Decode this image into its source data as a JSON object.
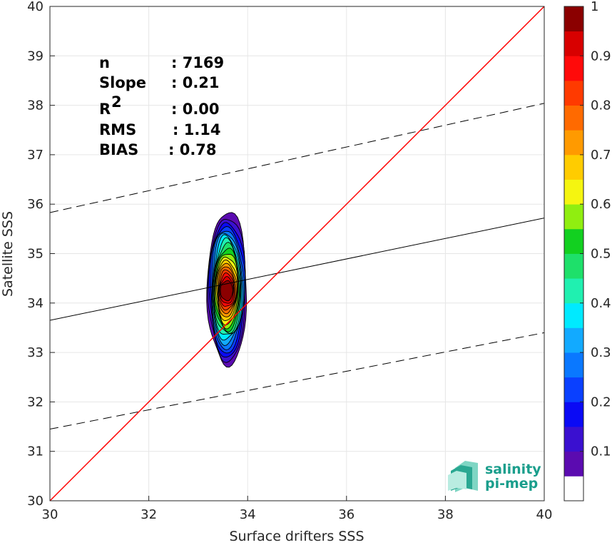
{
  "chart_data": {
    "type": "contour",
    "xlabel": "Surface drifters SSS",
    "ylabel": "Satellite SSS",
    "xlim": [
      30,
      40
    ],
    "ylim": [
      30,
      40
    ],
    "xticks": [
      "30",
      "32",
      "34",
      "36",
      "38",
      "40"
    ],
    "yticks": [
      "30",
      "31",
      "32",
      "33",
      "34",
      "35",
      "36",
      "37",
      "38",
      "39",
      "40"
    ],
    "grid": true,
    "stats": [
      {
        "label": "n",
        "value": ": 7169"
      },
      {
        "label": "Slope",
        "value": ": 0.21"
      },
      {
        "label": "R",
        "sup": "2",
        "value": ": 0.00"
      },
      {
        "label": "RMS",
        "value": ": 1.14"
      },
      {
        "label": "BIAS",
        "value": ": 0.78"
      }
    ],
    "identity_line": {
      "x": [
        30,
        40
      ],
      "y": [
        30,
        40
      ],
      "color": "#ff0000"
    },
    "regression_line": {
      "x": [
        30,
        40
      ],
      "y": [
        33.65,
        35.72
      ],
      "color": "#000000"
    },
    "upper_band": {
      "x": [
        30,
        40
      ],
      "y": [
        35.83,
        38.04
      ],
      "style": "dashed"
    },
    "lower_band": {
      "x": [
        30,
        40
      ],
      "y": [
        31.45,
        33.4
      ],
      "style": "dashed"
    },
    "density_contours": {
      "center": [
        33.57,
        34.25
      ],
      "levels": [
        0.05,
        0.1,
        0.15,
        0.2,
        0.25,
        0.3,
        0.35,
        0.4,
        0.45,
        0.5,
        0.55,
        0.6,
        0.65,
        0.7,
        0.75,
        0.8,
        0.85,
        0.9,
        0.95
      ],
      "outer_extent": {
        "x": [
          33.3,
          34.1
        ],
        "y": [
          32.75,
          35.85
        ]
      },
      "peak_extent": {
        "x": [
          33.45,
          33.7
        ],
        "y": [
          34.05,
          34.45
        ]
      }
    },
    "colorbar": {
      "range": [
        0,
        1
      ],
      "ticks": [
        "0.1",
        "0.2",
        "0.3",
        "0.4",
        "0.5",
        "0.6",
        "0.7",
        "0.8",
        "0.9",
        "1"
      ],
      "colors": [
        "#ffffff",
        "#5b0bb0",
        "#3a10d0",
        "#0a0af5",
        "#0a40ff",
        "#0a78ff",
        "#12aaff",
        "#00eaff",
        "#20f0b0",
        "#1ee06a",
        "#12d020",
        "#90ee10",
        "#f5f510",
        "#ffcc00",
        "#ff9a00",
        "#ff6a00",
        "#ff3a00",
        "#ff0a0a",
        "#d80000",
        "#8b0000"
      ]
    }
  },
  "logo": {
    "line1": "salinity",
    "line2": "pi-mep"
  }
}
